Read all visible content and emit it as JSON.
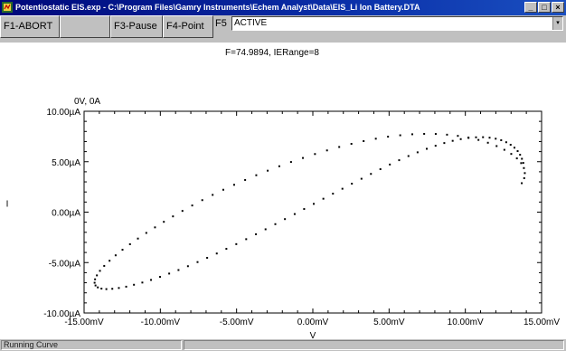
{
  "window": {
    "title": "Potentiostatic EIS.exp - C:\\Program Files\\Gamry Instruments\\Echem Analyst\\Data\\EIS_Li Ion Battery.DTA",
    "minimize": "_",
    "maximize": "□",
    "close": "×"
  },
  "toolbar": {
    "f1_label": "F1-ABORT",
    "f3_label": "F3-Pause",
    "f4_label": "F4-Point",
    "f5_label": "F5",
    "status_text": "ACTIVE",
    "dropdown_arrow": "▾"
  },
  "plot": {
    "readout": "F=74.9894, IERange=8",
    "cursor_label": "0V, 0A"
  },
  "chart_data": {
    "type": "scatter",
    "xlabel": "V",
    "ylabel": "I",
    "xlim": [
      -15,
      15
    ],
    "ylim": [
      -10,
      10
    ],
    "x_unit": "mV",
    "y_unit": "µA",
    "xticks": [
      "-15.00mV",
      "-10.00mV",
      "-5.00mV",
      "0.00mV",
      "5.00mV",
      "10.00mV",
      "15.00mV"
    ],
    "yticks": [
      "10.00µA",
      "5.00µA",
      "0.00µA",
      "-5.00µA",
      "-10.00µA"
    ],
    "grid": false,
    "series": [
      {
        "color": "#000000",
        "points": [
          [
            13.8,
            4.88
          ],
          [
            13.71,
            5.29
          ],
          [
            13.59,
            5.69
          ],
          [
            13.43,
            6.05
          ],
          [
            13.22,
            6.39
          ],
          [
            12.97,
            6.68
          ],
          [
            12.68,
            6.93
          ],
          [
            12.35,
            7.13
          ],
          [
            11.99,
            7.28
          ],
          [
            11.59,
            7.38
          ],
          [
            11.16,
            7.43
          ],
          [
            10.7,
            7.42
          ],
          [
            10.21,
            7.36
          ],
          [
            9.7,
            7.24
          ],
          [
            9.17,
            7.07
          ],
          [
            8.62,
            6.85
          ],
          [
            8.05,
            6.58
          ],
          [
            7.47,
            6.28
          ],
          [
            6.87,
            5.93
          ],
          [
            6.27,
            5.56
          ],
          [
            5.66,
            5.15
          ],
          [
            5.05,
            4.72
          ],
          [
            4.43,
            4.26
          ],
          [
            3.81,
            3.79
          ],
          [
            3.19,
            3.31
          ],
          [
            2.56,
            2.82
          ],
          [
            1.94,
            2.32
          ],
          [
            1.32,
            1.83
          ],
          [
            0.69,
            1.33
          ],
          [
            0.06,
            0.82
          ],
          [
            -0.57,
            0.31
          ],
          [
            -1.19,
            -0.19
          ],
          [
            -1.83,
            -0.69
          ],
          [
            -2.46,
            -1.19
          ],
          [
            -3.1,
            -1.7
          ],
          [
            -3.73,
            -2.19
          ],
          [
            -4.37,
            -2.68
          ],
          [
            -5.02,
            -3.17
          ],
          [
            -5.67,
            -3.64
          ],
          [
            -6.3,
            -4.1
          ],
          [
            -6.93,
            -4.53
          ],
          [
            -7.56,
            -4.95
          ],
          [
            -8.19,
            -5.36
          ],
          [
            -8.81,
            -5.74
          ],
          [
            -9.42,
            -6.09
          ],
          [
            -10.02,
            -6.42
          ],
          [
            -10.61,
            -6.72
          ],
          [
            -11.18,
            -6.98
          ],
          [
            -11.73,
            -7.2
          ],
          [
            -12.24,
            -7.39
          ],
          [
            -12.72,
            -7.52
          ],
          [
            -13.15,
            -7.6
          ],
          [
            -13.54,
            -7.63
          ],
          [
            -13.86,
            -7.58
          ],
          [
            -14.1,
            -7.46
          ],
          [
            -14.25,
            -7.27
          ],
          [
            -14.31,
            -7.0
          ],
          [
            -14.28,
            -6.66
          ],
          [
            -14.16,
            -6.27
          ],
          [
            -13.96,
            -5.82
          ],
          [
            -13.68,
            -5.33
          ],
          [
            -13.33,
            -4.82
          ],
          [
            -12.93,
            -4.28
          ],
          [
            -12.48,
            -3.73
          ],
          [
            -11.99,
            -3.18
          ],
          [
            -11.47,
            -2.62
          ],
          [
            -10.92,
            -2.06
          ],
          [
            -10.35,
            -1.51
          ],
          [
            -9.77,
            -0.96
          ],
          [
            -9.17,
            -0.42
          ],
          [
            -8.55,
            0.12
          ],
          [
            -7.91,
            0.66
          ],
          [
            -7.25,
            1.19
          ],
          [
            -6.57,
            1.71
          ],
          [
            -5.87,
            2.22
          ],
          [
            -5.16,
            2.71
          ],
          [
            -4.44,
            3.19
          ],
          [
            -3.71,
            3.66
          ],
          [
            -2.96,
            4.11
          ],
          [
            -2.2,
            4.55
          ],
          [
            -1.43,
            4.97
          ],
          [
            -0.65,
            5.37
          ],
          [
            0.14,
            5.76
          ],
          [
            0.93,
            6.12
          ],
          [
            1.73,
            6.46
          ],
          [
            2.53,
            6.77
          ],
          [
            3.33,
            7.04
          ],
          [
            4.13,
            7.28
          ],
          [
            4.93,
            7.48
          ],
          [
            5.73,
            7.62
          ],
          [
            6.52,
            7.72
          ],
          [
            7.3,
            7.76
          ],
          [
            8.06,
            7.75
          ],
          [
            8.8,
            7.68
          ],
          [
            9.51,
            7.56
          ],
          [
            10.2,
            7.39
          ],
          [
            10.86,
            7.16
          ],
          [
            11.48,
            6.88
          ],
          [
            12.05,
            6.55
          ],
          [
            12.56,
            6.18
          ],
          [
            13.01,
            5.77
          ],
          [
            13.38,
            5.33
          ],
          [
            13.66,
            4.86
          ],
          [
            13.84,
            4.37
          ],
          [
            13.9,
            3.87
          ],
          [
            13.86,
            3.37
          ],
          [
            13.7,
            2.87
          ]
        ]
      }
    ]
  },
  "statusbar": {
    "message": "Running Curve"
  }
}
